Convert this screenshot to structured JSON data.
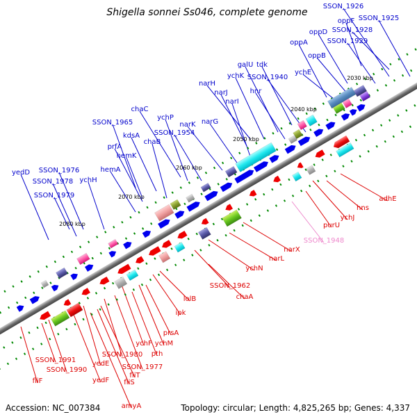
{
  "title": "Shigella sonnei Ss046, complete genome",
  "footer": {
    "accession": "Accession: NC_007384",
    "summary": "Topology: circular; Length: 4,825,265 bp; Genes: 4,337"
  },
  "colors": {
    "forward_label": "#0000cc",
    "reverse_label": "#dd0000",
    "highlight_label": "#ee88cc",
    "backbone": "#808080",
    "tick": "#008800"
  },
  "scale_labels": [
    {
      "text": "2030 kbp",
      "kbp": 2030
    },
    {
      "text": "2040 kbp",
      "kbp": 2040
    },
    {
      "text": "2050 kbp",
      "kbp": 2050
    },
    {
      "text": "2060 kbp",
      "kbp": 2060
    },
    {
      "text": "2070 kbp",
      "kbp": 2070
    },
    {
      "text": "2080 kbp",
      "kbp": 2080
    }
  ],
  "forward_labels": [
    "SSON_1926",
    "SSON_1925",
    "oppF",
    "SSON_1928",
    "oppD",
    "SSON_1929",
    "oppA",
    "oppB",
    "ychE",
    "galU",
    "tdk",
    "SSON_1940",
    "ychK",
    "hnr",
    "narH",
    "narJ",
    "narI",
    "narK",
    "narG",
    "chaC",
    "ychP",
    "SSON_1954",
    "SSON_1965",
    "kdsA",
    "chaB",
    "prfA",
    "hemK",
    "hemA",
    "yedD",
    "SSON_1976",
    "SSON_1978",
    "ychH",
    "SSON_1979"
  ],
  "reverse_labels": [
    "adhE",
    "hns",
    "ychJ",
    "purU",
    "narX",
    "narL",
    "ychN",
    "SSON_1962",
    "chaA",
    "lolB",
    "ipk",
    "prsA",
    "ychM",
    "pth",
    "ychF",
    "SSON_1977",
    "SSON_1980",
    "yedE",
    "fliT",
    "fliS",
    "amyA",
    "yedF",
    "SSON_1990",
    "SSON_1991",
    "fliF"
  ],
  "highlight_labels": [
    "SSON_1948"
  ]
}
